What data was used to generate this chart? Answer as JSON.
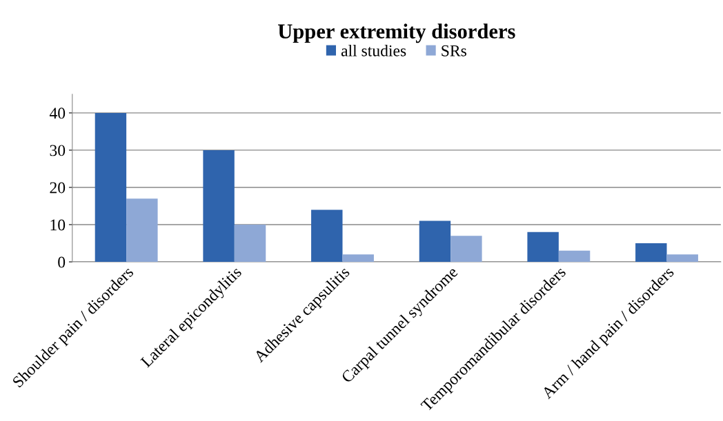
{
  "chart_data": {
    "type": "bar",
    "title": "Upper extremity disorders",
    "categories": [
      "Shoulder pain / disorders",
      "Lateral epicondylitis",
      "Adhesive capsulitis",
      "Carpal tunnel syndrome",
      "Temporomandibular disorders",
      "Arm / hand pain / disorders"
    ],
    "series": [
      {
        "name": "all studies",
        "color": "#2f64ad",
        "values": [
          40,
          30,
          14,
          11,
          8,
          5
        ]
      },
      {
        "name": "SRs",
        "color": "#8ea8d6",
        "values": [
          17,
          10,
          2,
          7,
          3,
          2
        ]
      }
    ],
    "ylim": [
      0,
      45
    ],
    "yticks": [
      0,
      10,
      20,
      30,
      40
    ],
    "grid": "y",
    "legend": "top"
  }
}
